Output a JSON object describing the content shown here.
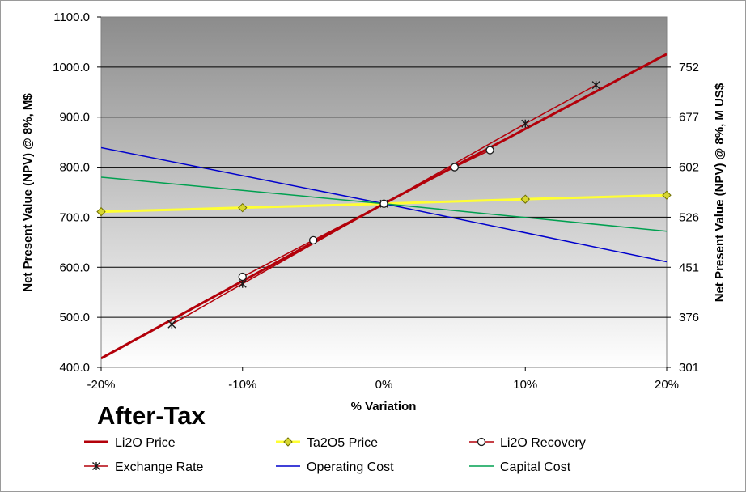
{
  "chart_data": {
    "type": "line",
    "title": "After-Tax",
    "xlabel": "% Variation",
    "ylabel": "Net Present Value (NPV) @ 8%, M$",
    "y2label": "Net Present Value (NPV) @ 8%, M US$",
    "xlim": [
      -20,
      20
    ],
    "ylim": [
      400,
      1100
    ],
    "x_ticks": [
      -20,
      -10,
      0,
      10,
      20
    ],
    "x_tick_labels": [
      "-20%",
      "-10%",
      "0%",
      "10%",
      "20%"
    ],
    "y_ticks": [
      400,
      500,
      600,
      700,
      800,
      900,
      1000,
      1100
    ],
    "y_tick_labels": [
      "400.0",
      "500.0",
      "600.0",
      "700.0",
      "800.0",
      "900.0",
      "1000.0",
      "1100.0"
    ],
    "y2_tick_labels": [
      "301",
      "376",
      "451",
      "526",
      "602",
      "677",
      "752"
    ],
    "y2_tick_values": [
      400,
      500,
      600,
      700,
      800,
      900,
      1000
    ],
    "grid": "horizontal",
    "legend_placement": "bottom",
    "series": [
      {
        "name": "Li2O Price",
        "color": "#b3000a",
        "width": 3,
        "marker": "none",
        "x": [
          -20,
          0,
          20
        ],
        "y": [
          418,
          727,
          1026
        ]
      },
      {
        "name": "Ta2O5 Price",
        "color": "#ffff33",
        "width": 3,
        "marker": "diamond",
        "marker_fill": "#d7d731",
        "x": [
          -20,
          -10,
          0,
          10,
          20
        ],
        "y": [
          711,
          719,
          727,
          736,
          744
        ]
      },
      {
        "name": "Li2O Recovery",
        "color": "#b3000a",
        "width": 1.5,
        "marker": "circle",
        "marker_fill": "#ffffff",
        "x": [
          -10,
          -5,
          0,
          5,
          7.5
        ],
        "y": [
          581,
          654,
          727,
          800,
          834
        ]
      },
      {
        "name": "Exchange Rate",
        "color": "#b3000a",
        "width": 1.5,
        "marker": "star",
        "marker_fill": "#1a1a1a",
        "x": [
          -15,
          -10,
          0,
          10,
          15
        ],
        "y": [
          486,
          567,
          727,
          887,
          964
        ]
      },
      {
        "name": "Operating Cost",
        "color": "#0000cc",
        "width": 1.5,
        "marker": "none",
        "x": [
          -20,
          0,
          20
        ],
        "y": [
          839,
          727,
          611
        ]
      },
      {
        "name": "Capital Cost",
        "color": "#00a050",
        "width": 1.5,
        "marker": "none",
        "x": [
          -20,
          0,
          20
        ],
        "y": [
          780,
          727,
          672
        ]
      }
    ],
    "legend_order": [
      "Li2O Price",
      "Ta2O5 Price",
      "Li2O Recovery",
      "Exchange Rate",
      "Operating Cost",
      "Capital Cost"
    ]
  }
}
